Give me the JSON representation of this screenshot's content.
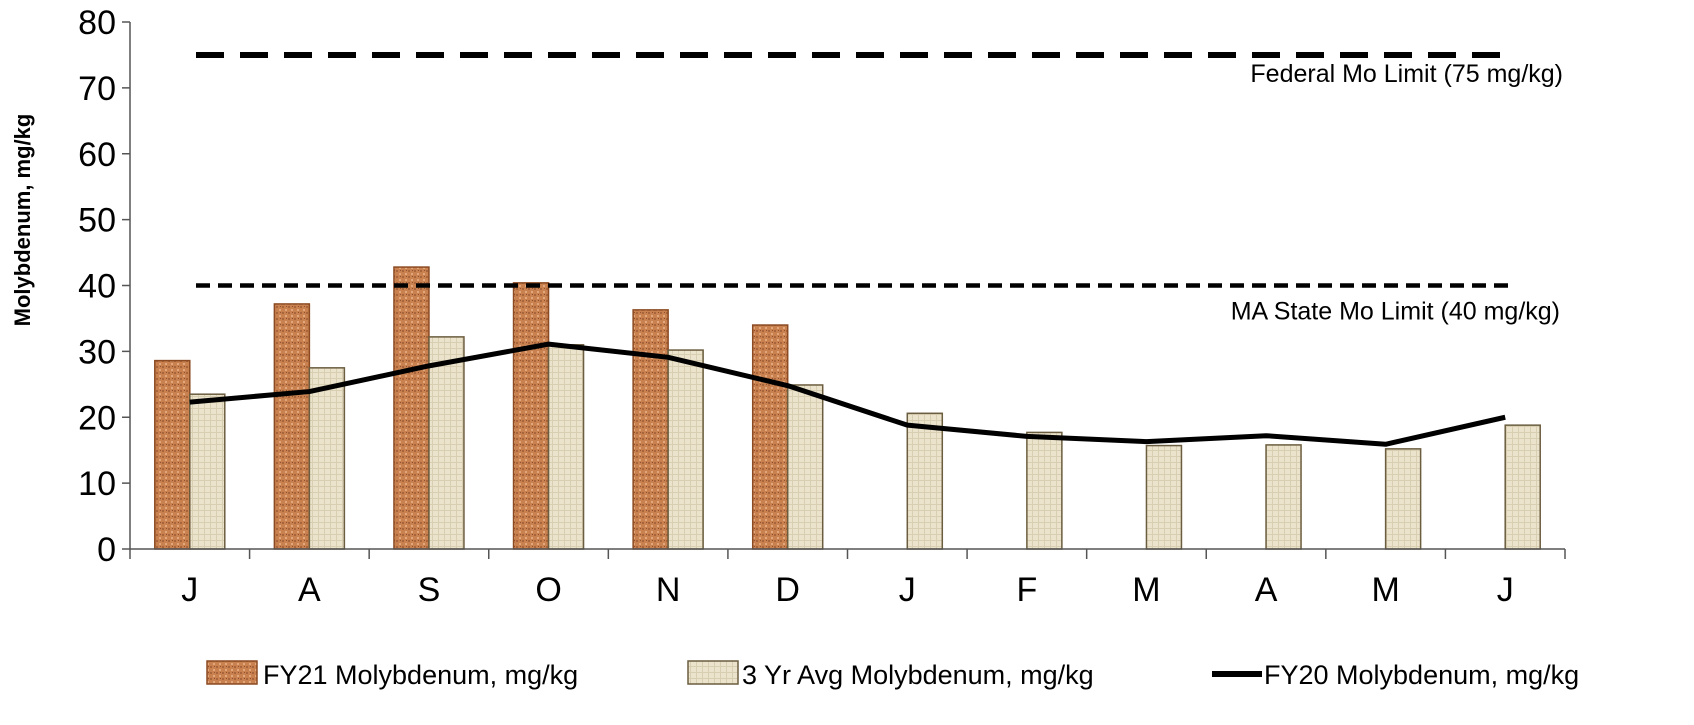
{
  "chart_data": {
    "type": "bar",
    "title": "",
    "xlabel": "",
    "ylabel": "Molybdenum, mg/kg",
    "ylim": [
      0,
      80
    ],
    "yticks": [
      0,
      10,
      20,
      30,
      40,
      50,
      60,
      70,
      80
    ],
    "categories": [
      "J",
      "A",
      "S",
      "O",
      "N",
      "D",
      "J",
      "F",
      "M",
      "A",
      "M",
      "J"
    ],
    "series": [
      {
        "name": "FY21 Molybdenum, mg/kg",
        "kind": "bar",
        "color": "#c8814f",
        "values": [
          28.6,
          37.2,
          42.8,
          40.4,
          36.3,
          34.0,
          null,
          null,
          null,
          null,
          null,
          null
        ]
      },
      {
        "name": "3 Yr Avg Molybdenum, mg/kg",
        "kind": "bar",
        "color": "#ebe3cc",
        "values": [
          23.5,
          27.5,
          32.2,
          31.0,
          30.2,
          24.9,
          20.6,
          17.7,
          15.7,
          15.8,
          15.2,
          18.8
        ]
      },
      {
        "name": "FY20 Molybdenum, mg/kg",
        "kind": "line",
        "color": "#000000",
        "values": [
          22.3,
          23.9,
          27.8,
          31.1,
          29.1,
          24.8,
          18.8,
          17.1,
          16.3,
          17.2,
          15.9,
          20.0
        ]
      }
    ],
    "reference_lines": [
      {
        "label": "Federal  Mo Limit (75 mg/kg)",
        "value": 75
      },
      {
        "label": "MA State  Mo Limit (40 mg/kg)",
        "value": 40
      }
    ],
    "legend_position": "bottom",
    "grid": false
  }
}
